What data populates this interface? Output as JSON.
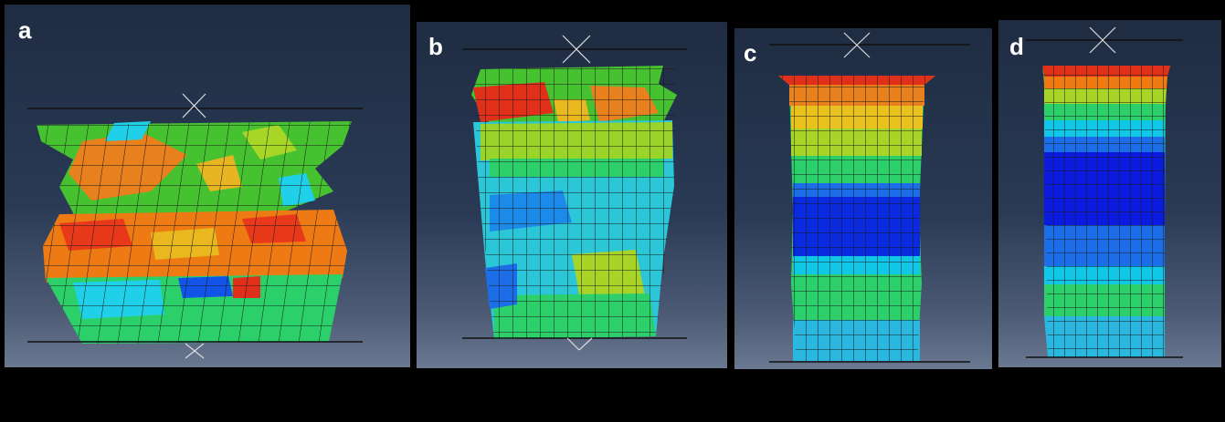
{
  "figure": {
    "panels": [
      {
        "label": "a"
      },
      {
        "label": "b"
      },
      {
        "label": "c"
      },
      {
        "label": "d"
      }
    ]
  },
  "colors": {
    "background": "#000000",
    "viewport_top": "#1f2c42",
    "viewport_bottom": "#6b7891",
    "rigid_plate": "#111111",
    "mesh_line": "#1a1a1a",
    "contour_scale": [
      "#0a1adf",
      "#0a6ce8",
      "#10c7e8",
      "#22dd58",
      "#a8dd22",
      "#f2c21a",
      "#f07a12",
      "#e0301a"
    ]
  }
}
